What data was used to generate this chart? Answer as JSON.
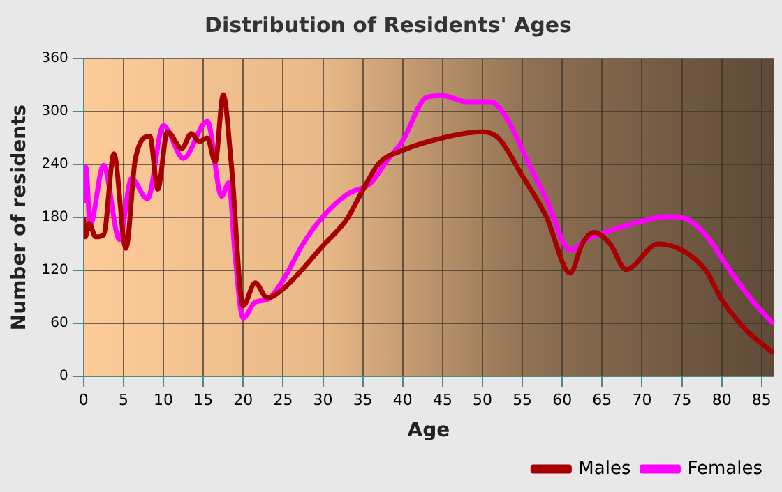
{
  "chart_data": {
    "type": "line",
    "title": "Distribution of Residents' Ages",
    "xlabel": "Age",
    "ylabel": "Number of residents",
    "xlim": [
      0,
      86.5
    ],
    "xticks": [
      0,
      5,
      10,
      15,
      20,
      25,
      30,
      35,
      40,
      45,
      50,
      55,
      60,
      65,
      70,
      75,
      80,
      85
    ],
    "ylim": [
      0,
      360
    ],
    "yticks": [
      0,
      60,
      120,
      180,
      240,
      300,
      360
    ],
    "grid": true,
    "legend": "bottom right",
    "marker": "none",
    "line_style": "solid",
    "series": [
      {
        "name": "Males",
        "color": "#a80000",
        "x": [
          0,
          0.2,
          0.7,
          1.5,
          2.5,
          3.8,
          5.3,
          6.5,
          8.3,
          9.3,
          10.5,
          12.3,
          13.5,
          14.5,
          15.5,
          16.5,
          17.5,
          18.5,
          20,
          21.5,
          23,
          25,
          30,
          33,
          35,
          37,
          40,
          45,
          50,
          52,
          55,
          58,
          61,
          62.5,
          64,
          66,
          68,
          72,
          75,
          78,
          80,
          83,
          86.5
        ],
        "values": [
          180,
          158,
          173,
          158,
          160,
          252,
          145,
          247,
          272,
          212,
          277,
          258,
          275,
          266,
          270,
          243,
          319,
          242,
          80,
          106,
          89,
          99,
          148,
          178,
          211,
          241,
          256,
          270,
          277,
          270,
          227,
          181,
          117,
          150,
          163,
          150,
          121,
          150,
          143,
          120,
          87,
          53,
          26
        ]
      },
      {
        "name": "Females",
        "color": "#ff00ff",
        "x": [
          0,
          0.3,
          0.8,
          2.5,
          4.5,
          6,
          8,
          10,
          12.5,
          15.5,
          17.3,
          18.2,
          19,
          20,
          21.5,
          23,
          25,
          27.5,
          30,
          33,
          36,
          38,
          40,
          43,
          45,
          48,
          51,
          53,
          56,
          58,
          61,
          63,
          66,
          70,
          73,
          75,
          78,
          81,
          84,
          86.5
        ],
        "values": [
          196,
          237,
          171,
          239,
          155,
          224,
          201,
          284,
          247,
          289,
          204,
          219,
          135,
          66,
          84,
          87,
          109,
          150,
          181,
          206,
          219,
          244,
          267,
          316,
          318,
          311,
          311,
          293,
          237,
          201,
          143,
          155,
          165,
          176,
          181,
          180,
          160,
          120,
          84,
          59
        ]
      }
    ]
  }
}
